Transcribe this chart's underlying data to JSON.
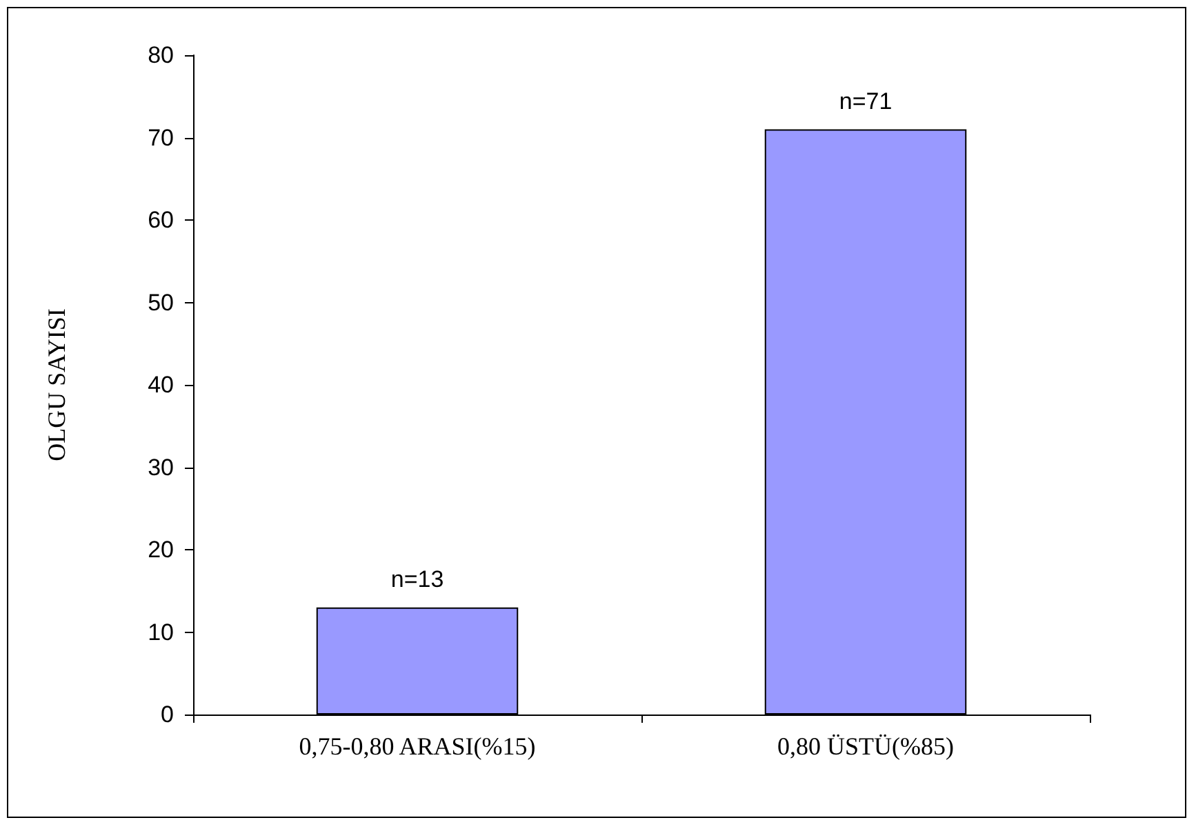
{
  "chart_data": {
    "type": "bar",
    "ylabel": "OLGU SAYISI",
    "categories": [
      "0,75-0,80 ARASI(%15)",
      "0,80 ÜSTÜ(%85)"
    ],
    "values": [
      13,
      71
    ],
    "value_labels": [
      "n=13",
      "n=71"
    ],
    "color": "#9999ff",
    "ylim": [
      0,
      80
    ],
    "yticks": [
      0,
      10,
      20,
      30,
      40,
      50,
      60,
      70,
      80
    ],
    "grid": false
  }
}
